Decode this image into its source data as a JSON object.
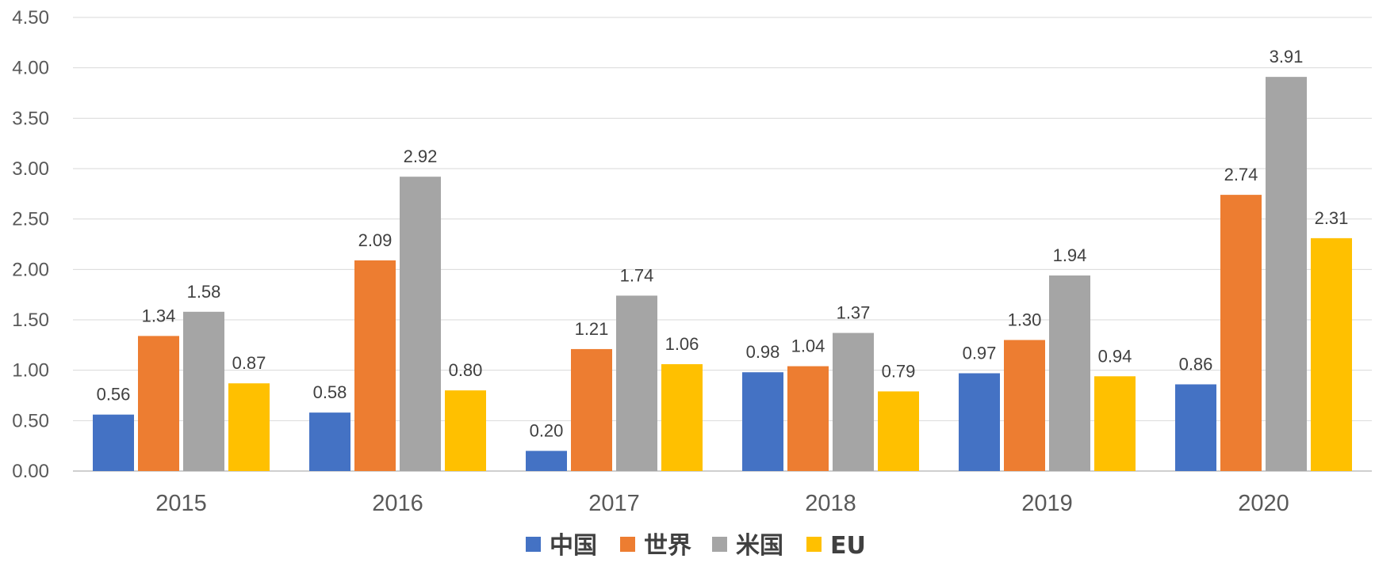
{
  "chart_data": {
    "type": "bar",
    "title": "",
    "xlabel": "",
    "ylabel": "",
    "ylim": [
      0,
      4.5
    ],
    "ytick_step": 0.5,
    "yticks": [
      "0.00",
      "0.50",
      "1.00",
      "1.50",
      "2.00",
      "2.50",
      "3.00",
      "3.50",
      "4.00",
      "4.50"
    ],
    "grid": true,
    "legend_position": "bottom",
    "categories": [
      "2015",
      "2016",
      "2017",
      "2018",
      "2019",
      "2020"
    ],
    "series": [
      {
        "name": "中国",
        "color": "#4472C4",
        "values": [
          0.56,
          0.58,
          0.2,
          0.98,
          0.97,
          0.86
        ],
        "labels": [
          "0.56",
          "0.58",
          "0.20",
          "0.98",
          "0.97",
          "0.86"
        ]
      },
      {
        "name": "世界",
        "color": "#ED7D31",
        "values": [
          1.34,
          2.09,
          1.21,
          1.04,
          1.3,
          2.74
        ],
        "labels": [
          "1.34",
          "2.09",
          "1.21",
          "1.04",
          "1.30",
          "2.74"
        ]
      },
      {
        "name": "米国",
        "color": "#A5A5A5",
        "values": [
          1.58,
          2.92,
          1.74,
          1.37,
          1.94,
          3.91
        ],
        "labels": [
          "1.58",
          "2.92",
          "1.74",
          "1.37",
          "1.94",
          "3.91"
        ]
      },
      {
        "name": "EU",
        "color": "#FFC000",
        "values": [
          0.87,
          0.8,
          1.06,
          0.79,
          0.94,
          2.31
        ],
        "labels": [
          "0.87",
          "0.80",
          "1.06",
          "0.79",
          "0.94",
          "2.31"
        ]
      }
    ]
  }
}
